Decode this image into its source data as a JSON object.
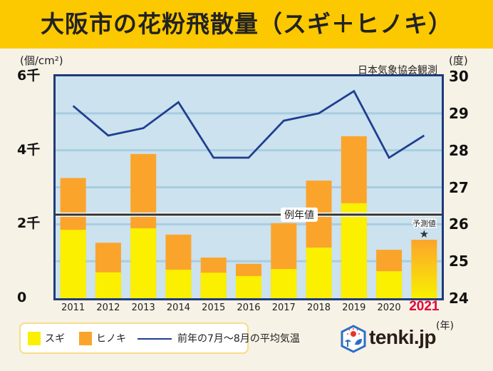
{
  "header": {
    "title": "大阪市の花粉飛散量（スギ＋ヒノキ）"
  },
  "source_note": "日本気象協会観測",
  "chart_data": {
    "type": "bar",
    "subtype": "stacked-bar-with-line",
    "title": "大阪市の花粉飛散量（スギ＋ヒノキ）",
    "categories": [
      "2011",
      "2012",
      "2013",
      "2014",
      "2015",
      "2016",
      "2017",
      "2018",
      "2019",
      "2020",
      "2021"
    ],
    "highlight_category": "2021",
    "xlabel": "(年)",
    "y_left": {
      "label": "(個/cm²)",
      "lim": [
        0,
        6000
      ],
      "ticks": [
        0,
        2000,
        4000,
        6000
      ],
      "tick_labels": [
        "0",
        "2千",
        "4千",
        "6千"
      ]
    },
    "y_right": {
      "label": "(度)",
      "lim": [
        24,
        30
      ],
      "ticks": [
        24,
        25,
        26,
        27,
        28,
        29,
        30
      ],
      "tick_labels": [
        "24",
        "25",
        "26",
        "27",
        "28",
        "29",
        "30"
      ]
    },
    "grid": true,
    "series": [
      {
        "name": "スギ",
        "type": "bar",
        "axis": "left",
        "color": "#FAF000",
        "values": [
          1850,
          700,
          1890,
          770,
          690,
          600,
          790,
          1370,
          2570,
          730,
          null
        ]
      },
      {
        "name": "ヒノキ",
        "type": "bar",
        "axis": "left",
        "color": "#FBA42B",
        "values": [
          1400,
          800,
          2010,
          950,
          410,
          330,
          1240,
          1810,
          1810,
          580,
          null
        ]
      },
      {
        "name": "前年の7月～8月の平均気温",
        "type": "line",
        "axis": "right",
        "color": "#1F3F8F",
        "values": [
          29.2,
          28.4,
          28.6,
          29.3,
          27.8,
          27.8,
          28.8,
          29.0,
          29.6,
          27.8,
          28.4
        ]
      }
    ],
    "forecast": {
      "category": "2021",
      "total": 1580,
      "label": "予測値",
      "marker": "star"
    },
    "reference_line": {
      "label": "例年値",
      "value": 2260
    },
    "legend": {
      "placement": "bottom-left",
      "entries": [
        {
          "label": "スギ",
          "kind": "swatch",
          "color": "#FAF000"
        },
        {
          "label": "ヒノキ",
          "kind": "swatch",
          "color": "#FBA42B"
        },
        {
          "label": "前年の7月～8月の平均気温",
          "kind": "line",
          "color": "#1F3F8F"
        }
      ]
    }
  },
  "logo": {
    "text": "tenki.jp",
    "icon": "tenki-cube-icon"
  }
}
